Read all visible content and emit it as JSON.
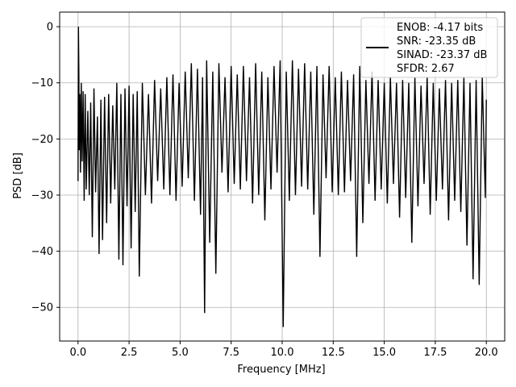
{
  "colors": {
    "line": "#000000",
    "grid": "#b0b0b0",
    "axes": "#000000",
    "background": "#ffffff",
    "legend_border": "#cccccc"
  },
  "chart_data": {
    "type": "line",
    "title": "",
    "xlabel": "Frequency [MHz]",
    "ylabel": "PSD [dB]",
    "xlim": [
      -0.9,
      20.9
    ],
    "ylim": [
      -56,
      2.6
    ],
    "grid": true,
    "legend_position": "top-right",
    "xticks": [
      0.0,
      2.5,
      5.0,
      7.5,
      10.0,
      12.5,
      15.0,
      17.5,
      20.0
    ],
    "xtick_labels": [
      "0.0",
      "2.5",
      "5.0",
      "7.5",
      "10.0",
      "12.5",
      "15.0",
      "17.5",
      "20.0"
    ],
    "yticks": [
      0,
      -10,
      -20,
      -30,
      -40,
      -50
    ],
    "ytick_labels": [
      "0",
      "−10",
      "−20",
      "−30",
      "−40",
      "−50"
    ],
    "legend_entries": [
      "ENOB: -4.17 bits",
      "SNR: -23.35 dB",
      "SINAD: -23.37 dB",
      "SFDR: 2.67"
    ],
    "series": [
      {
        "color": "#000000",
        "x": [
          0.0,
          0.02,
          0.04,
          0.06,
          0.09,
          0.12,
          0.16,
          0.2,
          0.25,
          0.3,
          0.35,
          0.4,
          0.48,
          0.55,
          0.62,
          0.7,
          0.78,
          0.86,
          0.95,
          1.03,
          1.12,
          1.2,
          1.3,
          1.4,
          1.5,
          1.6,
          1.7,
          1.8,
          1.9,
          2.0,
          2.1,
          2.2,
          2.3,
          2.4,
          2.5,
          2.6,
          2.7,
          2.8,
          2.9,
          3.0,
          3.15,
          3.3,
          3.45,
          3.6,
          3.75,
          3.9,
          4.05,
          4.2,
          4.35,
          4.5,
          4.65,
          4.8,
          4.95,
          5.1,
          5.25,
          5.4,
          5.55,
          5.7,
          5.85,
          6.0,
          6.1,
          6.2,
          6.3,
          6.45,
          6.6,
          6.75,
          6.9,
          7.05,
          7.2,
          7.35,
          7.5,
          7.65,
          7.8,
          7.95,
          8.1,
          8.25,
          8.4,
          8.55,
          8.7,
          8.85,
          9.0,
          9.15,
          9.3,
          9.45,
          9.6,
          9.75,
          9.9,
          10.05,
          10.2,
          10.35,
          10.5,
          10.65,
          10.8,
          10.95,
          11.1,
          11.25,
          11.4,
          11.55,
          11.7,
          11.85,
          12.0,
          12.15,
          12.3,
          12.45,
          12.6,
          12.75,
          12.9,
          13.05,
          13.2,
          13.35,
          13.5,
          13.65,
          13.8,
          13.95,
          14.1,
          14.25,
          14.4,
          14.55,
          14.7,
          14.85,
          15.0,
          15.15,
          15.3,
          15.45,
          15.6,
          15.75,
          15.9,
          16.05,
          16.2,
          16.35,
          16.5,
          16.65,
          16.8,
          16.95,
          17.1,
          17.25,
          17.4,
          17.55,
          17.7,
          17.85,
          18.0,
          18.15,
          18.3,
          18.45,
          18.6,
          18.75,
          18.9,
          19.05,
          19.2,
          19.35,
          19.5,
          19.65,
          19.8,
          19.95,
          20.0
        ],
        "y": [
          -27.5,
          0.0,
          -8.0,
          -22.0,
          -12.0,
          -26.0,
          -10.0,
          -24.0,
          -11.5,
          -31.0,
          -12.0,
          -29.0,
          -15.0,
          -30.0,
          -13.5,
          -37.5,
          -11.0,
          -29.5,
          -16.0,
          -40.5,
          -13.0,
          -38.0,
          -12.5,
          -35.0,
          -12.0,
          -31.5,
          -14.0,
          -29.0,
          -10.0,
          -41.5,
          -12.0,
          -42.5,
          -11.0,
          -32.0,
          -10.5,
          -39.5,
          -12.0,
          -33.0,
          -11.5,
          -44.5,
          -10.0,
          -30.0,
          -12.0,
          -31.5,
          -9.5,
          -27.5,
          -11.0,
          -29.0,
          -9.0,
          -30.0,
          -8.5,
          -31.0,
          -10.0,
          -28.5,
          -8.0,
          -27.0,
          -6.5,
          -31.0,
          -7.5,
          -33.5,
          -9.0,
          -51.0,
          -6.0,
          -38.5,
          -8.0,
          -44.0,
          -6.5,
          -26.0,
          -9.0,
          -29.5,
          -7.0,
          -28.0,
          -8.5,
          -29.0,
          -7.0,
          -27.5,
          -9.0,
          -31.5,
          -6.5,
          -30.0,
          -8.0,
          -34.5,
          -9.0,
          -29.0,
          -7.0,
          -26.0,
          -6.0,
          -53.5,
          -8.0,
          -31.0,
          -6.0,
          -30.0,
          -7.5,
          -28.5,
          -6.5,
          -29.0,
          -8.0,
          -33.5,
          -7.0,
          -41.0,
          -8.5,
          -27.0,
          -7.0,
          -29.5,
          -9.0,
          -30.0,
          -8.0,
          -29.5,
          -9.5,
          -27.5,
          -8.5,
          -41.0,
          -7.0,
          -35.0,
          -9.5,
          -28.0,
          -8.0,
          -31.0,
          -9.5,
          -29.0,
          -10.0,
          -31.5,
          -9.0,
          -28.0,
          -10.0,
          -34.0,
          -9.5,
          -30.5,
          -10.0,
          -38.5,
          -9.0,
          -32.0,
          -10.5,
          -28.0,
          -9.0,
          -33.5,
          -10.0,
          -31.0,
          -11.0,
          -29.0,
          -9.5,
          -34.5,
          -10.0,
          -31.0,
          -9.5,
          -33.0,
          -9.0,
          -39.0,
          -10.0,
          -45.0,
          -9.5,
          -46.0,
          -9.0,
          -30.5,
          -13.0
        ]
      }
    ]
  }
}
